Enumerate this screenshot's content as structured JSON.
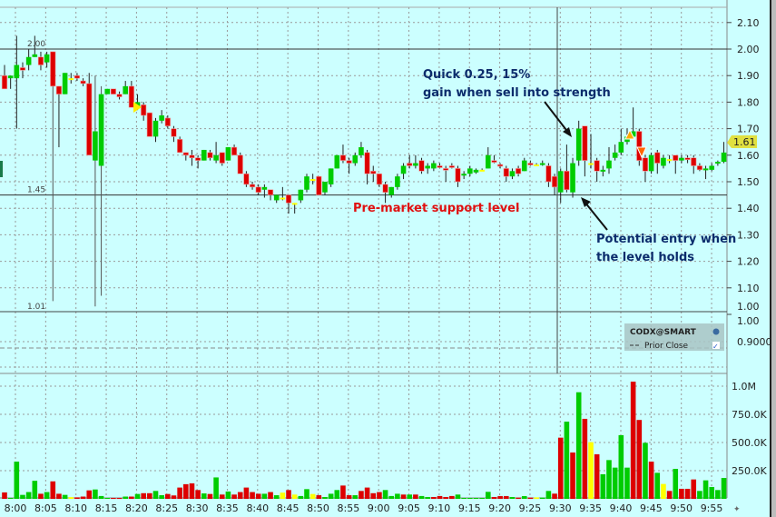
{
  "chart_data": {
    "type": "candlestick",
    "instrument": "CODX@SMART",
    "legend_item": "Prior Close",
    "last_price_tag": "1.61",
    "price_axis": {
      "ticks": [
        "2.10",
        "2.00",
        "1.90",
        "1.80",
        "1.70",
        "1.60",
        "1.50",
        "1.40",
        "1.30",
        "1.20",
        "1.10",
        "1.00"
      ],
      "ylim": [
        1.0,
        2.1
      ]
    },
    "sub_axis": {
      "ticks": [
        "1.00",
        "0.9000"
      ]
    },
    "volume_axis": {
      "ticks": [
        "1.0M",
        "750.0K",
        "500.0K",
        "250.0K"
      ],
      "ylim": [
        0,
        1000000
      ]
    },
    "time_ticks": [
      "8:00",
      "8:05",
      "8:10",
      "8:15",
      "8:20",
      "8:25",
      "8:30",
      "8:35",
      "8:40",
      "8:45",
      "8:50",
      "8:55",
      "9:00",
      "9:05",
      "9:10",
      "9:15",
      "9:20",
      "9:25",
      "9:30",
      "9:35",
      "9:40",
      "9:45",
      "9:50",
      "9:55"
    ],
    "first_bar_time": "7:58",
    "bar_interval_minutes": 1,
    "level_lines": [
      {
        "price": 2.0,
        "label": "2.00"
      },
      {
        "price": 1.45,
        "label": "1.45"
      },
      {
        "price": 1.01,
        "label": "1.01"
      }
    ],
    "session_open_marker": "9:30",
    "annotations": [
      {
        "id": "sell",
        "lines": [
          "Quick 0.25, 15%",
          "gain when sell into strength"
        ]
      },
      {
        "id": "support",
        "lines": [
          "Pre-market support level"
        ]
      },
      {
        "id": "entry",
        "lines": [
          "Potential entry when",
          "the level holds"
        ]
      }
    ],
    "candles_ohlc": [
      [
        1.9,
        1.94,
        1.85,
        1.85
      ],
      [
        1.89,
        1.9,
        1.85,
        1.9
      ],
      [
        1.89,
        2.05,
        1.7,
        1.94
      ],
      [
        1.93,
        1.95,
        1.89,
        1.92
      ],
      [
        1.94,
        2.0,
        1.92,
        1.97
      ],
      [
        1.97,
        2.05,
        1.97,
        1.98
      ],
      [
        1.97,
        1.99,
        1.92,
        1.94
      ],
      [
        1.95,
        1.99,
        1.93,
        1.98
      ],
      [
        1.99,
        1.99,
        1.05,
        1.86
      ],
      [
        1.86,
        1.86,
        1.63,
        1.83
      ],
      [
        1.83,
        1.91,
        1.83,
        1.91
      ],
      [
        1.89,
        1.91,
        1.87,
        1.89
      ],
      [
        1.9,
        1.91,
        1.88,
        1.89
      ],
      [
        1.88,
        1.89,
        1.86,
        1.87
      ],
      [
        1.87,
        1.91,
        1.6,
        1.6
      ],
      [
        1.58,
        1.9,
        1.03,
        1.69
      ],
      [
        1.56,
        1.86,
        1.07,
        1.83
      ],
      [
        1.83,
        1.85,
        1.83,
        1.85
      ],
      [
        1.85,
        1.85,
        1.83,
        1.83
      ],
      [
        1.83,
        1.84,
        1.81,
        1.82
      ],
      [
        1.83,
        1.88,
        1.83,
        1.86
      ],
      [
        1.86,
        1.88,
        1.78,
        1.78
      ],
      [
        1.78,
        1.83,
        1.77,
        1.8
      ],
      [
        1.79,
        1.8,
        1.73,
        1.75
      ],
      [
        1.76,
        1.76,
        1.67,
        1.67
      ],
      [
        1.67,
        1.74,
        1.65,
        1.73
      ],
      [
        1.73,
        1.77,
        1.72,
        1.75
      ],
      [
        1.74,
        1.75,
        1.7,
        1.71
      ],
      [
        1.7,
        1.71,
        1.65,
        1.67
      ],
      [
        1.66,
        1.67,
        1.61,
        1.61
      ],
      [
        1.61,
        1.61,
        1.58,
        1.6
      ],
      [
        1.6,
        1.62,
        1.56,
        1.59
      ],
      [
        1.59,
        1.6,
        1.55,
        1.58
      ],
      [
        1.58,
        1.62,
        1.58,
        1.62
      ],
      [
        1.61,
        1.62,
        1.58,
        1.59
      ],
      [
        1.58,
        1.65,
        1.57,
        1.6
      ],
      [
        1.61,
        1.61,
        1.56,
        1.57
      ],
      [
        1.58,
        1.63,
        1.58,
        1.63
      ],
      [
        1.63,
        1.64,
        1.6,
        1.6
      ],
      [
        1.6,
        1.61,
        1.53,
        1.53
      ],
      [
        1.53,
        1.54,
        1.48,
        1.49
      ],
      [
        1.49,
        1.5,
        1.47,
        1.48
      ],
      [
        1.48,
        1.49,
        1.45,
        1.46
      ],
      [
        1.47,
        1.49,
        1.44,
        1.48
      ],
      [
        1.47,
        1.47,
        1.43,
        1.45
      ],
      [
        1.43,
        1.45,
        1.42,
        1.45
      ],
      [
        1.44,
        1.48,
        1.43,
        1.44
      ],
      [
        1.45,
        1.45,
        1.38,
        1.42
      ],
      [
        1.42,
        1.42,
        1.38,
        1.42
      ],
      [
        1.43,
        1.47,
        1.42,
        1.47
      ],
      [
        1.47,
        1.53,
        1.46,
        1.52
      ],
      [
        1.51,
        1.53,
        1.49,
        1.51
      ],
      [
        1.52,
        1.52,
        1.45,
        1.45
      ],
      [
        1.46,
        1.5,
        1.45,
        1.5
      ],
      [
        1.49,
        1.55,
        1.48,
        1.55
      ],
      [
        1.55,
        1.6,
        1.55,
        1.6
      ],
      [
        1.6,
        1.64,
        1.57,
        1.58
      ],
      [
        1.58,
        1.59,
        1.53,
        1.57
      ],
      [
        1.57,
        1.61,
        1.56,
        1.6
      ],
      [
        1.6,
        1.65,
        1.59,
        1.63
      ],
      [
        1.61,
        1.62,
        1.49,
        1.53
      ],
      [
        1.54,
        1.56,
        1.5,
        1.53
      ],
      [
        1.53,
        1.53,
        1.48,
        1.49
      ],
      [
        1.49,
        1.5,
        1.42,
        1.46
      ],
      [
        1.45,
        1.48,
        1.44,
        1.48
      ],
      [
        1.48,
        1.53,
        1.47,
        1.52
      ],
      [
        1.53,
        1.57,
        1.51,
        1.56
      ],
      [
        1.57,
        1.6,
        1.55,
        1.56
      ],
      [
        1.56,
        1.6,
        1.55,
        1.57
      ],
      [
        1.58,
        1.59,
        1.53,
        1.54
      ],
      [
        1.55,
        1.57,
        1.53,
        1.56
      ],
      [
        1.55,
        1.58,
        1.54,
        1.57
      ],
      [
        1.56,
        1.57,
        1.55,
        1.555
      ],
      [
        1.55,
        1.56,
        1.5,
        1.545
      ],
      [
        1.56,
        1.57,
        1.55,
        1.555
      ],
      [
        1.55,
        1.56,
        1.48,
        1.5
      ],
      [
        1.525,
        1.54,
        1.51,
        1.53
      ],
      [
        1.53,
        1.56,
        1.52,
        1.55
      ],
      [
        1.535,
        1.55,
        1.53,
        1.545
      ],
      [
        1.545,
        1.55,
        1.54,
        1.545
      ],
      [
        1.55,
        1.63,
        1.55,
        1.6
      ],
      [
        1.58,
        1.6,
        1.57,
        1.575
      ],
      [
        1.565,
        1.57,
        1.55,
        1.56
      ],
      [
        1.55,
        1.56,
        1.5,
        1.52
      ],
      [
        1.52,
        1.55,
        1.51,
        1.54
      ],
      [
        1.55,
        1.56,
        1.52,
        1.53
      ],
      [
        1.54,
        1.59,
        1.54,
        1.58
      ],
      [
        1.57,
        1.58,
        1.56,
        1.565
      ],
      [
        1.565,
        1.57,
        1.56,
        1.565
      ],
      [
        1.565,
        1.58,
        1.56,
        1.57
      ],
      [
        1.56,
        1.57,
        1.48,
        1.5
      ],
      [
        1.52,
        1.53,
        1.45,
        1.48
      ],
      [
        1.46,
        1.55,
        1.42,
        1.54
      ],
      [
        1.54,
        1.64,
        1.46,
        1.47
      ],
      [
        1.46,
        1.59,
        1.44,
        1.57
      ],
      [
        1.58,
        1.73,
        1.56,
        1.7
      ],
      [
        1.71,
        1.71,
        1.52,
        1.58
      ],
      [
        1.57,
        1.68,
        1.55,
        1.57
      ],
      [
        1.58,
        1.59,
        1.5,
        1.54
      ],
      [
        1.54,
        1.56,
        1.52,
        1.545
      ],
      [
        1.55,
        1.63,
        1.53,
        1.58
      ],
      [
        1.59,
        1.64,
        1.58,
        1.61
      ],
      [
        1.61,
        1.7,
        1.6,
        1.65
      ],
      [
        1.65,
        1.7,
        1.64,
        1.67
      ],
      [
        1.67,
        1.78,
        1.66,
        1.69
      ],
      [
        1.69,
        1.7,
        1.56,
        1.58
      ],
      [
        1.59,
        1.6,
        1.5,
        1.54
      ],
      [
        1.54,
        1.61,
        1.53,
        1.6
      ],
      [
        1.61,
        1.62,
        1.53,
        1.57
      ],
      [
        1.56,
        1.6,
        1.55,
        1.59
      ],
      [
        1.585,
        1.6,
        1.57,
        1.585
      ],
      [
        1.6,
        1.6,
        1.53,
        1.58
      ],
      [
        1.58,
        1.6,
        1.57,
        1.59
      ],
      [
        1.59,
        1.6,
        1.57,
        1.585
      ],
      [
        1.59,
        1.6,
        1.53,
        1.56
      ],
      [
        1.56,
        1.57,
        1.54,
        1.545
      ],
      [
        1.545,
        1.56,
        1.51,
        1.55
      ],
      [
        1.545,
        1.57,
        1.54,
        1.56
      ],
      [
        1.57,
        1.58,
        1.56,
        1.575
      ],
      [
        1.575,
        1.65,
        1.57,
        1.61
      ]
    ],
    "volume": [
      57000,
      8000,
      330000,
      35000,
      60000,
      160000,
      45000,
      60000,
      155000,
      45000,
      35000,
      15000,
      13000,
      20000,
      75000,
      83000,
      25000,
      8000,
      8000,
      8000,
      20000,
      20000,
      43000,
      50000,
      50000,
      70000,
      32000,
      43000,
      30000,
      100000,
      130000,
      137000,
      78000,
      48000,
      43000,
      190000,
      38000,
      65000,
      38000,
      60000,
      100000,
      60000,
      45000,
      45000,
      60000,
      32000,
      55000,
      78000,
      38000,
      25000,
      86000,
      43000,
      32000,
      16000,
      45000,
      78000,
      118000,
      32000,
      32000,
      70000,
      100000,
      50000,
      60000,
      78000,
      25000,
      45000,
      38000,
      38000,
      38000,
      25000,
      16000,
      16000,
      25000,
      16000,
      25000,
      38000,
      8000,
      8000,
      8000,
      8000,
      62000,
      16000,
      24000,
      24000,
      16000,
      11000,
      24000,
      11000,
      13000,
      11000,
      70000,
      46000,
      543000,
      685000,
      411000,
      946000,
      710000,
      503000,
      395000,
      218000,
      344000,
      277000,
      565000,
      277000,
      1040000,
      700000,
      497000,
      330000,
      231000,
      132000,
      70000,
      266000,
      89000,
      89000,
      172000,
      70000,
      164000,
      105000,
      78000,
      185000
    ],
    "volume_colors": "rgggggrgrrgyrrrgggrrgrgrrggrrrrrrgrgrgrr",
    "volume_colors_2": "rrrgrgyryggyrgggrrgrrrrgggrgrggrrrrggg",
    "volume_colors_3": "gggrrrgrgryggrrgrgryrgggggrrgrgyrgrrrgggg",
    "colors": {
      "up": "#00cc00",
      "down": "#dd0000",
      "unchanged": "#ffff00",
      "background": "#ccffff",
      "annotation": "#0c2c6c",
      "support_text": "#e01010",
      "price_tag": "#e0e040"
    }
  }
}
